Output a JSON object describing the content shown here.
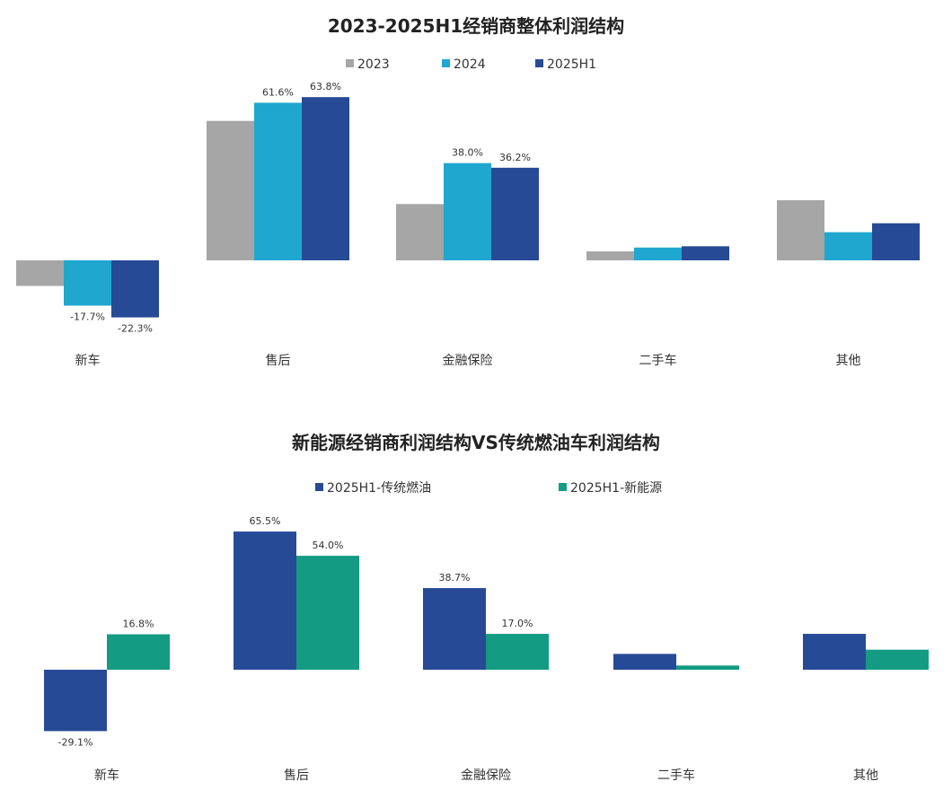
{
  "chart_data": [
    {
      "type": "bar",
      "title": "2023-2025H1经销商整体利润结构",
      "categories": [
        "新车",
        "售后",
        "金融保险",
        "二手车",
        "其他"
      ],
      "series": [
        {
          "name": "2023",
          "color": "#a6a6a6",
          "values": [
            -10.0,
            54.5,
            22.0,
            3.5,
            23.5
          ],
          "labels": [
            "",
            "",
            "",
            "",
            ""
          ]
        },
        {
          "name": "2024",
          "color": "#1fa7cf",
          "values": [
            -17.7,
            61.6,
            38.0,
            5.0,
            11.0
          ],
          "labels": [
            "-17.7%",
            "61.6%",
            "38.0%",
            "",
            ""
          ]
        },
        {
          "name": "2025H1",
          "color": "#264a95",
          "values": [
            -22.3,
            63.8,
            36.2,
            5.5,
            14.5
          ],
          "labels": [
            "-22.3%",
            "63.8%",
            "36.2%",
            "",
            ""
          ]
        }
      ],
      "legend": "top-center",
      "grid": false
    },
    {
      "type": "bar",
      "title": "新能源经销商利润结构VS传统燃油车利润结构",
      "categories": [
        "新车",
        "售后",
        "金融保险",
        "二手车",
        "其他"
      ],
      "series": [
        {
          "name": "2025H1-传统燃油",
          "color": "#264a95",
          "values": [
            -29.1,
            65.5,
            38.7,
            7.5,
            17.0
          ],
          "labels": [
            "-29.1%",
            "65.5%",
            "38.7%",
            "",
            ""
          ]
        },
        {
          "name": "2025H1-新能源",
          "color": "#139b83",
          "values": [
            16.8,
            54.0,
            17.0,
            2.0,
            9.5
          ],
          "labels": [
            "16.8%",
            "54.0%",
            "17.0%",
            "",
            ""
          ]
        }
      ],
      "legend": "top-center",
      "grid": false
    }
  ]
}
